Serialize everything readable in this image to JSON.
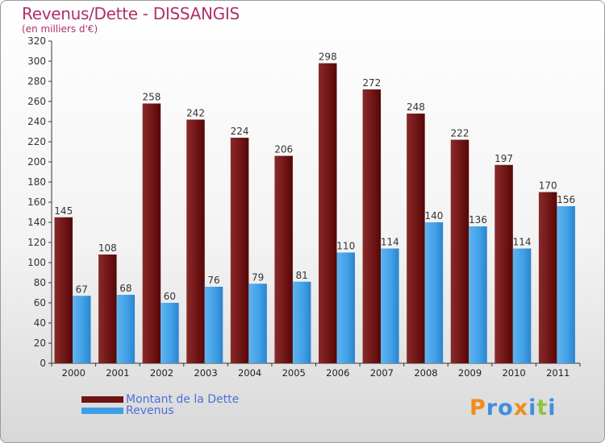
{
  "title": "Revenus/Dette - DISSANGIS",
  "subtitle": "(en milliers d'€)",
  "colors": {
    "dette": "#6e1414",
    "revenus": "#3f9fe6",
    "title": "#b0306a",
    "legend_text": "#4d6fd8"
  },
  "legend": {
    "dette_label": "Montant de la Dette",
    "revenus_label": "Revenus"
  },
  "logo": {
    "text": "Proxiti",
    "letters": [
      "P",
      "r",
      "o",
      "x",
      "i",
      "t",
      "i"
    ],
    "letter_colors": [
      "#f08c1e",
      "#3f8fe0",
      "#3f8fe0",
      "#f08c1e",
      "#3f8fe0",
      "#8cc63e",
      "#3f8fe0"
    ]
  },
  "chart_data": {
    "type": "bar",
    "title": "Revenus/Dette - DISSANGIS",
    "subtitle": "(en milliers d'€)",
    "categories": [
      "2000",
      "2001",
      "2002",
      "2003",
      "2004",
      "2005",
      "2006",
      "2007",
      "2008",
      "2009",
      "2010",
      "2011"
    ],
    "series": [
      {
        "name": "Montant de la Dette",
        "values": [
          145,
          108,
          258,
          242,
          224,
          206,
          298,
          272,
          248,
          222,
          197,
          170
        ]
      },
      {
        "name": "Revenus",
        "values": [
          67,
          68,
          60,
          76,
          79,
          81,
          110,
          114,
          140,
          136,
          114,
          156
        ]
      }
    ],
    "ylim": [
      0,
      320
    ],
    "ytick_step": 20,
    "grid": false,
    "legend_position": "bottom-left",
    "data_labels": true
  }
}
